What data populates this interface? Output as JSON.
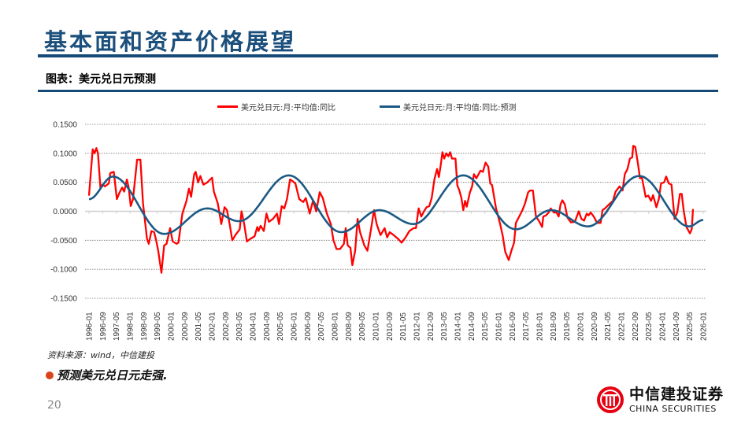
{
  "header": {
    "title": "基本面和资产价格展望"
  },
  "figure": {
    "title": "图表：美元兑日元预测"
  },
  "source": "资料来源：wind，中信建投",
  "bullet": "预测美元兑日元走强.",
  "page_number": "20",
  "logo": {
    "cn": "中信建投证券",
    "en": "CHINA SECURITIES",
    "color": "#e60012"
  },
  "chart_data": {
    "type": "line",
    "title": "",
    "xlabel": "",
    "ylabel": "",
    "ylim": [
      -0.15,
      0.15
    ],
    "xlim": [
      "1996-01",
      "2026-01"
    ],
    "yticks": [
      "0.1500",
      "0.1000",
      "0.0500",
      "0.0000",
      "-0.0500",
      "-0.1000",
      "-0.1500"
    ],
    "ytick_values": [
      0.15,
      0.1,
      0.05,
      0,
      -0.05,
      -0.1,
      -0.15
    ],
    "xticks": [
      "1996-01",
      "1996-09",
      "1997-05",
      "1998-01",
      "1998-09",
      "1999-05",
      "2000-01",
      "2000-09",
      "2001-05",
      "2002-01",
      "2002-09",
      "2003-05",
      "2004-01",
      "2004-09",
      "2005-05",
      "2006-01",
      "2006-09",
      "2007-05",
      "2008-01",
      "2008-09",
      "2009-05",
      "2010-01",
      "2010-09",
      "2011-05",
      "2012-01",
      "2012-09",
      "2013-05",
      "2014-01",
      "2014-09",
      "2015-05",
      "2016-01",
      "2016-09",
      "2017-05",
      "2018-01",
      "2018-09",
      "2019-05",
      "2020-01",
      "2020-09",
      "2021-05",
      "2022-01",
      "2022-09",
      "2023-05",
      "2024-01",
      "2024-09",
      "2025-05",
      "2026-01"
    ],
    "grid": true,
    "legend_position": "top",
    "series": [
      {
        "name": "美元兑日元:月:平均值:同比",
        "color": "#ff0000",
        "x_unit": "decimal-year",
        "points": [
          [
            1996.0,
            0.027
          ],
          [
            1996.01,
            0.032
          ],
          [
            1996.18,
            0.107
          ],
          [
            1996.27,
            0.1
          ],
          [
            1996.36,
            0.109
          ],
          [
            1996.44,
            0.1
          ],
          [
            1996.56,
            0.039
          ],
          [
            1996.65,
            0.046
          ],
          [
            1996.78,
            0.043
          ],
          [
            1996.97,
            0.048
          ],
          [
            1997.04,
            0.066
          ],
          [
            1997.21,
            0.068
          ],
          [
            1997.36,
            0.021
          ],
          [
            1997.49,
            0.032
          ],
          [
            1997.62,
            0.041
          ],
          [
            1997.72,
            0.034
          ],
          [
            1997.85,
            0.055
          ],
          [
            1997.94,
            0.041
          ],
          [
            1998.04,
            0.009
          ],
          [
            1998.15,
            0.021
          ],
          [
            1998.35,
            0.089
          ],
          [
            1998.51,
            0.089
          ],
          [
            1998.64,
            0.014
          ],
          [
            1998.83,
            -0.047
          ],
          [
            1998.92,
            -0.056
          ],
          [
            1999.05,
            -0.034
          ],
          [
            1999.18,
            -0.036
          ],
          [
            1999.28,
            -0.05
          ],
          [
            1999.38,
            -0.068
          ],
          [
            1999.54,
            -0.106
          ],
          [
            1999.67,
            -0.059
          ],
          [
            1999.79,
            -0.056
          ],
          [
            1999.96,
            -0.029
          ],
          [
            2000.09,
            -0.052
          ],
          [
            2000.28,
            -0.056
          ],
          [
            2000.37,
            -0.054
          ],
          [
            2000.56,
            -0.004
          ],
          [
            2000.76,
            0.018
          ],
          [
            2000.88,
            0.039
          ],
          [
            2000.99,
            0.025
          ],
          [
            2001.14,
            0.064
          ],
          [
            2001.21,
            0.068
          ],
          [
            2001.33,
            0.05
          ],
          [
            2001.44,
            0.061
          ],
          [
            2001.59,
            0.046
          ],
          [
            2001.78,
            0.05
          ],
          [
            2002.01,
            0.058
          ],
          [
            2002.1,
            0.034
          ],
          [
            2002.29,
            0.014
          ],
          [
            2002.46,
            -0.022
          ],
          [
            2002.62,
            0.007
          ],
          [
            2002.74,
            0.002
          ],
          [
            2002.87,
            -0.022
          ],
          [
            2003.0,
            -0.05
          ],
          [
            2003.15,
            -0.041
          ],
          [
            2003.36,
            -0.031
          ],
          [
            2003.45,
            0.0
          ],
          [
            2003.58,
            -0.022
          ],
          [
            2003.71,
            -0.052
          ],
          [
            2003.9,
            -0.047
          ],
          [
            2004.09,
            -0.043
          ],
          [
            2004.22,
            -0.027
          ],
          [
            2004.28,
            -0.034
          ],
          [
            2004.38,
            -0.025
          ],
          [
            2004.54,
            -0.034
          ],
          [
            2004.67,
            -0.004
          ],
          [
            2004.79,
            -0.018
          ],
          [
            2004.99,
            -0.013
          ],
          [
            2005.18,
            -0.004
          ],
          [
            2005.28,
            -0.022
          ],
          [
            2005.41,
            0.009
          ],
          [
            2005.54,
            0.005
          ],
          [
            2005.67,
            0.021
          ],
          [
            2005.82,
            0.055
          ],
          [
            2005.95,
            0.052
          ],
          [
            2006.08,
            0.048
          ],
          [
            2006.27,
            0.021
          ],
          [
            2006.46,
            0.016
          ],
          [
            2006.59,
            0.023
          ],
          [
            2006.78,
            -0.004
          ],
          [
            2006.94,
            0.018
          ],
          [
            2007.1,
            0.0
          ],
          [
            2007.27,
            0.033
          ],
          [
            2007.42,
            0.023
          ],
          [
            2007.62,
            -0.004
          ],
          [
            2007.81,
            -0.022
          ],
          [
            2007.94,
            -0.05
          ],
          [
            2008.09,
            -0.065
          ],
          [
            2008.26,
            -0.065
          ],
          [
            2008.45,
            -0.056
          ],
          [
            2008.54,
            -0.029
          ],
          [
            2008.64,
            -0.059
          ],
          [
            2008.77,
            -0.063
          ],
          [
            2008.86,
            -0.093
          ],
          [
            2009.0,
            -0.068
          ],
          [
            2009.12,
            -0.013
          ],
          [
            2009.24,
            -0.036
          ],
          [
            2009.45,
            -0.059
          ],
          [
            2009.6,
            -0.068
          ],
          [
            2009.8,
            -0.025
          ],
          [
            2009.92,
            0.002
          ],
          [
            2010.05,
            -0.022
          ],
          [
            2010.24,
            -0.041
          ],
          [
            2010.44,
            -0.029
          ],
          [
            2010.56,
            -0.045
          ],
          [
            2010.69,
            -0.036
          ],
          [
            2010.88,
            -0.041
          ],
          [
            2011.08,
            -0.047
          ],
          [
            2011.27,
            -0.054
          ],
          [
            2011.46,
            -0.045
          ],
          [
            2011.65,
            -0.034
          ],
          [
            2011.85,
            -0.029
          ],
          [
            2011.97,
            -0.029
          ],
          [
            2012.1,
            0.005
          ],
          [
            2012.23,
            -0.009
          ],
          [
            2012.36,
            0.0
          ],
          [
            2012.49,
            0.007
          ],
          [
            2012.62,
            0.009
          ],
          [
            2012.74,
            0.023
          ],
          [
            2012.87,
            0.055
          ],
          [
            2013.0,
            0.073
          ],
          [
            2013.09,
            0.059
          ],
          [
            2013.19,
            0.082
          ],
          [
            2013.26,
            0.102
          ],
          [
            2013.35,
            0.091
          ],
          [
            2013.45,
            0.1
          ],
          [
            2013.55,
            0.095
          ],
          [
            2013.64,
            0.102
          ],
          [
            2013.73,
            0.091
          ],
          [
            2013.9,
            0.091
          ],
          [
            2013.99,
            0.045
          ],
          [
            2014.09,
            0.036
          ],
          [
            2014.19,
            0.023
          ],
          [
            2014.28,
            0.002
          ],
          [
            2014.37,
            0.018
          ],
          [
            2014.45,
            0.008
          ],
          [
            2014.6,
            0.032
          ],
          [
            2014.71,
            0.043
          ],
          [
            2014.8,
            0.064
          ],
          [
            2014.92,
            0.057
          ],
          [
            2015.12,
            0.07
          ],
          [
            2015.24,
            0.068
          ],
          [
            2015.37,
            0.084
          ],
          [
            2015.5,
            0.077
          ],
          [
            2015.6,
            0.048
          ],
          [
            2015.69,
            0.045
          ],
          [
            2015.88,
            0.005
          ],
          [
            2016.08,
            -0.022
          ],
          [
            2016.21,
            -0.043
          ],
          [
            2016.33,
            -0.07
          ],
          [
            2016.5,
            -0.084
          ],
          [
            2016.63,
            -0.068
          ],
          [
            2016.76,
            -0.054
          ],
          [
            2016.85,
            -0.02
          ],
          [
            2017.01,
            -0.009
          ],
          [
            2017.17,
            0.002
          ],
          [
            2017.3,
            0.014
          ],
          [
            2017.45,
            0.033
          ],
          [
            2017.55,
            0.036
          ],
          [
            2017.68,
            0.036
          ],
          [
            2017.83,
            -0.009
          ],
          [
            2018.0,
            -0.018
          ],
          [
            2018.13,
            -0.027
          ],
          [
            2018.19,
            -0.009
          ],
          [
            2018.32,
            -0.007
          ],
          [
            2018.45,
            -0.002
          ],
          [
            2018.55,
            0.005
          ],
          [
            2018.71,
            -0.002
          ],
          [
            2018.83,
            -0.002
          ],
          [
            2018.94,
            -0.009
          ],
          [
            2019.03,
            0.012
          ],
          [
            2019.12,
            0.019
          ],
          [
            2019.24,
            0.012
          ],
          [
            2019.37,
            -0.011
          ],
          [
            2019.54,
            -0.019
          ],
          [
            2019.73,
            -0.018
          ],
          [
            2019.92,
            0.0
          ],
          [
            2020.05,
            -0.013
          ],
          [
            2020.18,
            -0.016
          ],
          [
            2020.31,
            -0.004
          ],
          [
            2020.4,
            -0.007
          ],
          [
            2020.5,
            -0.002
          ],
          [
            2020.65,
            -0.009
          ],
          [
            2020.82,
            -0.02
          ],
          [
            2020.99,
            -0.02
          ],
          [
            2021.08,
            0.002
          ],
          [
            2021.2,
            0.005
          ],
          [
            2021.4,
            0.012
          ],
          [
            2021.59,
            0.018
          ],
          [
            2021.72,
            0.034
          ],
          [
            2021.91,
            0.043
          ],
          [
            2022.06,
            0.036
          ],
          [
            2022.17,
            0.064
          ],
          [
            2022.3,
            0.073
          ],
          [
            2022.42,
            0.091
          ],
          [
            2022.53,
            0.093
          ],
          [
            2022.58,
            0.113
          ],
          [
            2022.68,
            0.111
          ],
          [
            2022.81,
            0.082
          ],
          [
            2022.91,
            0.057
          ],
          [
            2023.0,
            0.059
          ],
          [
            2023.19,
            0.025
          ],
          [
            2023.32,
            0.027
          ],
          [
            2023.45,
            0.018
          ],
          [
            2023.55,
            0.028
          ],
          [
            2023.71,
            0.007
          ],
          [
            2023.83,
            0.021
          ],
          [
            2023.94,
            0.048
          ],
          [
            2024.09,
            0.05
          ],
          [
            2024.19,
            0.06
          ],
          [
            2024.32,
            0.048
          ],
          [
            2024.45,
            0.046
          ],
          [
            2024.6,
            -0.013
          ],
          [
            2024.73,
            -0.002
          ],
          [
            2024.86,
            0.03
          ],
          [
            2024.95,
            0.03
          ],
          [
            2025.05,
            0.0
          ],
          [
            2025.18,
            -0.027
          ],
          [
            2025.35,
            -0.038
          ],
          [
            2025.44,
            -0.031
          ],
          [
            2025.5,
            0.004
          ]
        ]
      },
      {
        "name": "美元兑日元:月:平均值:同比:预测",
        "color": "#1b5a85",
        "x_unit": "decimal-year",
        "extrema": [
          [
            1996.0,
            0.021
          ],
          [
            1997.17,
            0.06
          ],
          [
            1999.67,
            -0.039
          ],
          [
            2001.78,
            0.005
          ],
          [
            2003.32,
            -0.017
          ],
          [
            2005.76,
            0.062
          ],
          [
            2008.32,
            -0.036
          ],
          [
            2010.18,
            0.002
          ],
          [
            2011.85,
            -0.022
          ],
          [
            2014.28,
            0.062
          ],
          [
            2016.85,
            -0.031
          ],
          [
            2018.58,
            0.002
          ],
          [
            2020.37,
            -0.026
          ],
          [
            2022.87,
            0.061
          ],
          [
            2025.31,
            -0.026
          ],
          [
            2026.0,
            -0.015
          ]
        ]
      }
    ]
  }
}
